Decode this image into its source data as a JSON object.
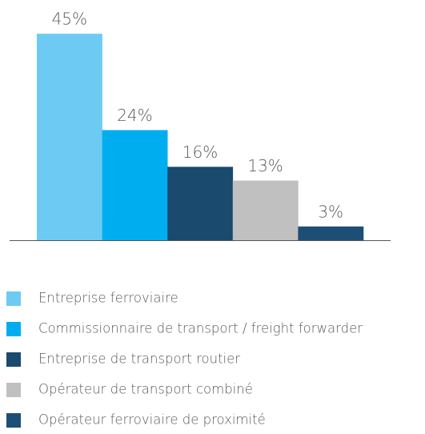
{
  "chart_data": {
    "type": "bar",
    "categories": [
      "Entreprise ferroviaire",
      "Commissionnaire de transport / freight forwarder",
      "Entreprise de transport routier",
      "Opérateur de transport combiné",
      "Opérateur ferroviaire de proximité"
    ],
    "values": [
      45,
      24,
      16,
      13,
      3
    ],
    "value_labels": [
      "45%",
      "24%",
      "16%",
      "13%",
      "3%"
    ],
    "colors": [
      "#6dcbf3",
      "#00aeef",
      "#1a4a6e",
      "#c0c0c0",
      "#1d4e76"
    ]
  }
}
